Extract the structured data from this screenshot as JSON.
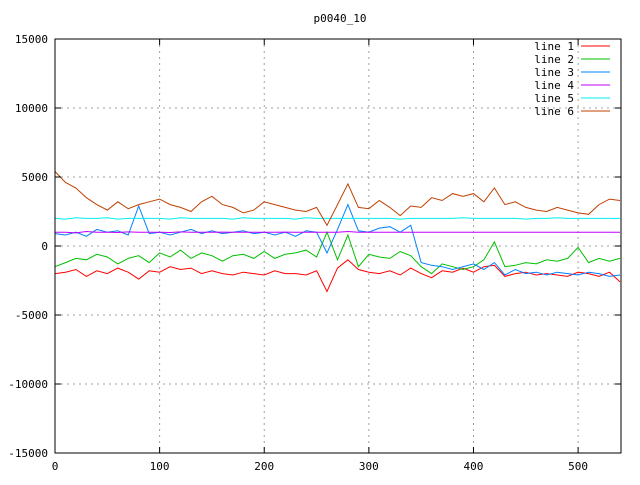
{
  "chart_data": {
    "type": "line",
    "title": "p0040_10",
    "xlabel": "",
    "ylabel": "",
    "xlim": [
      0,
      541
    ],
    "ylim": [
      -15000,
      15000
    ],
    "xticks": [
      0,
      100,
      200,
      300,
      400,
      500
    ],
    "yticks": [
      -15000,
      -10000,
      -5000,
      0,
      5000,
      10000,
      15000
    ],
    "grid": true,
    "legend_position": "top-right",
    "x": [
      0,
      10,
      20,
      30,
      40,
      50,
      60,
      70,
      80,
      90,
      100,
      110,
      120,
      130,
      140,
      150,
      160,
      170,
      180,
      190,
      200,
      210,
      220,
      230,
      240,
      250,
      260,
      270,
      280,
      290,
      300,
      310,
      320,
      330,
      340,
      350,
      360,
      370,
      380,
      390,
      400,
      410,
      420,
      430,
      440,
      450,
      460,
      470,
      480,
      490,
      500,
      510,
      520,
      530,
      540
    ],
    "series": [
      {
        "name": "line 1",
        "color": "#ff0000",
        "values": [
          -2000,
          -1900,
          -1700,
          -2200,
          -1800,
          -2000,
          -1600,
          -1900,
          -2400,
          -1800,
          -1900,
          -1500,
          -1700,
          -1600,
          -2000,
          -1800,
          -2000,
          -2100,
          -1900,
          -2000,
          -2100,
          -1800,
          -2000,
          -2000,
          -2100,
          -1800,
          -3300,
          -1600,
          -1000,
          -1700,
          -1900,
          -2000,
          -1800,
          -2100,
          -1600,
          -2000,
          -2300,
          -1800,
          -1900,
          -1600,
          -1900,
          -1500,
          -1400,
          -2200,
          -2000,
          -1900,
          -2100,
          -2000,
          -2100,
          -2200,
          -1900,
          -2000,
          -2200,
          -1900,
          -2600
        ]
      },
      {
        "name": "line 2",
        "color": "#00c000",
        "values": [
          -1500,
          -1200,
          -900,
          -1000,
          -600,
          -800,
          -1300,
          -900,
          -700,
          -1200,
          -500,
          -800,
          -300,
          -900,
          -500,
          -700,
          -1100,
          -700,
          -600,
          -900,
          -400,
          -900,
          -600,
          -500,
          -300,
          -800,
          1000,
          -1000,
          800,
          -1500,
          -600,
          -800,
          -900,
          -400,
          -700,
          -1500,
          -2000,
          -1300,
          -1500,
          -1700,
          -1500,
          -1000,
          300,
          -1500,
          -1400,
          -1200,
          -1300,
          -1000,
          -1100,
          -900,
          -100,
          -1200,
          -900,
          -1100,
          -900
        ]
      },
      {
        "name": "line 3",
        "color": "#0080ff",
        "values": [
          900,
          800,
          1000,
          700,
          1200,
          1000,
          1100,
          800,
          2900,
          900,
          1000,
          800,
          1000,
          1200,
          900,
          1100,
          900,
          1000,
          1100,
          900,
          1000,
          800,
          1000,
          700,
          1100,
          1000,
          -500,
          1200,
          3000,
          1100,
          1000,
          1300,
          1400,
          1000,
          1500,
          -1200,
          -1400,
          -1500,
          -1700,
          -1500,
          -1300,
          -1700,
          -1200,
          -2100,
          -1700,
          -2000,
          -1900,
          -2100,
          -1900,
          -2000,
          -2100,
          -1900,
          -2000,
          -2200,
          -2100
        ]
      },
      {
        "name": "line 4",
        "color": "#c000ff",
        "values": [
          1000,
          1000,
          950,
          1050,
          1000,
          1000,
          980,
          1020,
          1000,
          1000,
          1000,
          980,
          1020,
          1000,
          1000,
          990,
          1010,
          1000,
          1000,
          1000,
          1000,
          990,
          1010,
          1000,
          1000,
          1000,
          1000,
          1000,
          1050,
          1000,
          1000,
          1000,
          1000,
          1000,
          1000,
          1000,
          1000,
          1000,
          1000,
          1000,
          1000,
          1000,
          1000,
          1000,
          1000,
          1000,
          1000,
          1000,
          1000,
          1000,
          1000,
          1000,
          1000,
          1000,
          1000
        ]
      },
      {
        "name": "line 5",
        "color": "#00eeee",
        "values": [
          2000,
          1950,
          2050,
          2000,
          2000,
          2050,
          1950,
          2000,
          2000,
          2000,
          2000,
          1950,
          2050,
          2000,
          2000,
          2000,
          2000,
          1950,
          2050,
          2000,
          2000,
          2000,
          2000,
          1950,
          2050,
          2000,
          2000,
          2000,
          2000,
          2000,
          2000,
          2000,
          2000,
          1950,
          2000,
          2000,
          2000,
          2000,
          2000,
          2050,
          2000,
          2000,
          2000,
          2000,
          2000,
          1950,
          2000,
          2000,
          2050,
          2000,
          2000,
          2000,
          2000,
          2000,
          2000
        ]
      },
      {
        "name": "line 6",
        "color": "#c04000",
        "values": [
          5400,
          4600,
          4200,
          3500,
          3000,
          2600,
          3200,
          2700,
          3000,
          3200,
          3400,
          3000,
          2800,
          2500,
          3200,
          3600,
          3000,
          2800,
          2400,
          2600,
          3200,
          3000,
          2800,
          2600,
          2500,
          2800,
          1500,
          3000,
          4500,
          2800,
          2700,
          3300,
          2800,
          2200,
          2900,
          2800,
          3500,
          3300,
          3800,
          3600,
          3800,
          3200,
          4200,
          3000,
          3200,
          2800,
          2600,
          2500,
          2800,
          2600,
          2400,
          2300,
          3000,
          3400,
          3300
        ]
      }
    ]
  }
}
